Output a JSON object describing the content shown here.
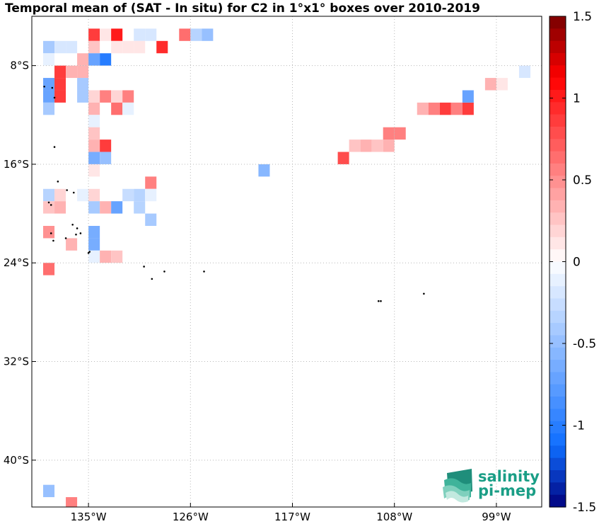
{
  "chart_data": {
    "type": "heatmap",
    "title": "Temporal mean of (SAT - In situ) for C2 in 1°x1° boxes over 2010-2019",
    "xlabel": "",
    "ylabel": "",
    "x_ticks": [
      "135°W",
      "126°W",
      "117°W",
      "108°W",
      "99°W"
    ],
    "y_ticks": [
      "8°S",
      "16°S",
      "24°S",
      "32°S",
      "40°S"
    ],
    "xlim": [
      -140.0,
      -95.0
    ],
    "ylim": [
      -43.8,
      -4.0
    ],
    "grid": true,
    "colorbar": {
      "min": -1.5,
      "max": 1.5,
      "levels": 40,
      "ticks": [
        "1.5",
        "1",
        "0.5",
        "0",
        "-0.5",
        "-1",
        "-1.5"
      ],
      "tick_values": [
        1.5,
        1.0,
        0.5,
        0.0,
        -0.5,
        -1.0,
        -1.5
      ]
    },
    "cells": [
      {
        "lon": -135.0,
        "lat": -5.0,
        "value": 0.9
      },
      {
        "lon": -134.0,
        "lat": -5.0,
        "value": 0.15
      },
      {
        "lon": -133.0,
        "lat": -5.0,
        "value": 1.0
      },
      {
        "lon": -131.0,
        "lat": -5.0,
        "value": -0.2
      },
      {
        "lon": -130.0,
        "lat": -5.0,
        "value": -0.2
      },
      {
        "lon": -127.0,
        "lat": -5.0,
        "value": 0.65
      },
      {
        "lon": -126.0,
        "lat": -5.0,
        "value": -0.3
      },
      {
        "lon": -125.0,
        "lat": -5.0,
        "value": -0.5
      },
      {
        "lon": -139.0,
        "lat": -6.0,
        "value": -0.4
      },
      {
        "lon": -138.0,
        "lat": -6.0,
        "value": -0.2
      },
      {
        "lon": -137.0,
        "lat": -6.0,
        "value": -0.2
      },
      {
        "lon": -135.0,
        "lat": -6.0,
        "value": 0.25
      },
      {
        "lon": -133.0,
        "lat": -6.0,
        "value": 0.15
      },
      {
        "lon": -132.0,
        "lat": -6.0,
        "value": 0.15
      },
      {
        "lon": -131.0,
        "lat": -6.0,
        "value": 0.15
      },
      {
        "lon": -129.0,
        "lat": -6.0,
        "value": 0.95
      },
      {
        "lon": -139.0,
        "lat": -7.0,
        "value": -0.1
      },
      {
        "lon": -136.0,
        "lat": -7.0,
        "value": 0.35
      },
      {
        "lon": -135.0,
        "lat": -7.0,
        "value": -0.7
      },
      {
        "lon": -134.0,
        "lat": -7.0,
        "value": -1.05
      },
      {
        "lon": -138.0,
        "lat": -8.0,
        "value": 0.9
      },
      {
        "lon": -137.0,
        "lat": -8.0,
        "value": 0.35
      },
      {
        "lon": -136.0,
        "lat": -8.0,
        "value": 0.35
      },
      {
        "lon": -139.0,
        "lat": -9.0,
        "value": -0.7
      },
      {
        "lon": -138.0,
        "lat": -9.0,
        "value": 0.9
      },
      {
        "lon": -136.0,
        "lat": -9.0,
        "value": -0.45
      },
      {
        "lon": -139.0,
        "lat": -10.0,
        "value": -0.7
      },
      {
        "lon": -138.0,
        "lat": -10.0,
        "value": 0.9
      },
      {
        "lon": -136.0,
        "lat": -10.0,
        "value": -0.45
      },
      {
        "lon": -135.0,
        "lat": -10.0,
        "value": 0.2
      },
      {
        "lon": -134.0,
        "lat": -10.0,
        "value": 0.55
      },
      {
        "lon": -133.0,
        "lat": -10.0,
        "value": 0.2
      },
      {
        "lon": -132.0,
        "lat": -10.0,
        "value": 0.55
      },
      {
        "lon": -139.0,
        "lat": -11.0,
        "value": -0.4
      },
      {
        "lon": -135.0,
        "lat": -11.0,
        "value": 0.3
      },
      {
        "lon": -133.0,
        "lat": -11.0,
        "value": 0.65
      },
      {
        "lon": -132.0,
        "lat": -11.0,
        "value": -0.15
      },
      {
        "lon": -135.0,
        "lat": -12.0,
        "value": -0.1
      },
      {
        "lon": -135.0,
        "lat": -13.0,
        "value": 0.25
      },
      {
        "lon": -135.0,
        "lat": -14.0,
        "value": 0.35
      },
      {
        "lon": -134.0,
        "lat": -14.0,
        "value": 0.85
      },
      {
        "lon": -135.0,
        "lat": -15.0,
        "value": -0.65
      },
      {
        "lon": -134.0,
        "lat": -15.0,
        "value": -0.5
      },
      {
        "lon": -135.0,
        "lat": -16.0,
        "value": 0.15
      },
      {
        "lon": -130.0,
        "lat": -17.0,
        "value": 0.55
      },
      {
        "lon": -139.0,
        "lat": -18.0,
        "value": -0.3
      },
      {
        "lon": -138.0,
        "lat": -18.0,
        "value": 0.2
      },
      {
        "lon": -136.0,
        "lat": -18.0,
        "value": -0.15
      },
      {
        "lon": -135.0,
        "lat": -18.0,
        "value": 0.2
      },
      {
        "lon": -132.0,
        "lat": -18.0,
        "value": -0.25
      },
      {
        "lon": -131.0,
        "lat": -18.0,
        "value": -0.3
      },
      {
        "lon": -130.0,
        "lat": -18.0,
        "value": -0.15
      },
      {
        "lon": -139.0,
        "lat": -19.0,
        "value": 0.25
      },
      {
        "lon": -138.0,
        "lat": -19.0,
        "value": 0.35
      },
      {
        "lon": -135.0,
        "lat": -19.0,
        "value": -0.45
      },
      {
        "lon": -134.0,
        "lat": -19.0,
        "value": 0.35
      },
      {
        "lon": -133.0,
        "lat": -19.0,
        "value": -0.75
      },
      {
        "lon": -131.0,
        "lat": -19.0,
        "value": -0.35
      },
      {
        "lon": -130.0,
        "lat": -20.0,
        "value": -0.45
      },
      {
        "lon": -139.0,
        "lat": -21.0,
        "value": 0.45
      },
      {
        "lon": -135.0,
        "lat": -21.0,
        "value": -0.65
      },
      {
        "lon": -135.0,
        "lat": -22.0,
        "value": -0.65
      },
      {
        "lon": -137.0,
        "lat": -22.0,
        "value": 0.35
      },
      {
        "lon": -135.0,
        "lat": -23.0,
        "value": -0.15
      },
      {
        "lon": -134.0,
        "lat": -23.0,
        "value": 0.35
      },
      {
        "lon": -133.0,
        "lat": -23.0,
        "value": 0.25
      },
      {
        "lon": -139.0,
        "lat": -24.0,
        "value": 0.65
      },
      {
        "lon": -120.0,
        "lat": -16.0,
        "value": -0.55
      },
      {
        "lon": -113.0,
        "lat": -15.0,
        "value": 0.75
      },
      {
        "lon": -112.0,
        "lat": -14.0,
        "value": 0.25
      },
      {
        "lon": -111.0,
        "lat": -14.0,
        "value": 0.35
      },
      {
        "lon": -110.0,
        "lat": -14.0,
        "value": 0.25
      },
      {
        "lon": -109.0,
        "lat": -14.0,
        "value": 0.3
      },
      {
        "lon": -109.0,
        "lat": -13.0,
        "value": 0.55
      },
      {
        "lon": -108.0,
        "lat": -13.0,
        "value": 0.55
      },
      {
        "lon": -106.0,
        "lat": -11.0,
        "value": 0.35
      },
      {
        "lon": -105.0,
        "lat": -11.0,
        "value": 0.55
      },
      {
        "lon": -104.0,
        "lat": -11.0,
        "value": 0.85
      },
      {
        "lon": -103.0,
        "lat": -11.0,
        "value": 0.55
      },
      {
        "lon": -102.0,
        "lat": -11.0,
        "value": 0.9
      },
      {
        "lon": -102.0,
        "lat": -10.0,
        "value": -0.75
      },
      {
        "lon": -100.0,
        "lat": -9.0,
        "value": 0.35
      },
      {
        "lon": -99.0,
        "lat": -9.0,
        "value": 0.15
      },
      {
        "lon": -97.0,
        "lat": -8.0,
        "value": -0.2
      },
      {
        "lon": -139.0,
        "lat": -42.0,
        "value": -0.5
      },
      {
        "lon": -137.0,
        "lat": -43.0,
        "value": 0.55
      }
    ],
    "islands": [
      {
        "lon": -138.9,
        "lat": -9.7
      },
      {
        "lon": -138.2,
        "lat": -9.8
      },
      {
        "lon": -138.0,
        "lat": -10.6
      },
      {
        "lon": -138.0,
        "lat": -14.6
      },
      {
        "lon": -137.7,
        "lat": -17.4
      },
      {
        "lon": -136.9,
        "lat": -18.1
      },
      {
        "lon": -136.3,
        "lat": -18.3
      },
      {
        "lon": -138.5,
        "lat": -19.1
      },
      {
        "lon": -138.3,
        "lat": -19.3
      },
      {
        "lon": -136.4,
        "lat": -20.9
      },
      {
        "lon": -136.0,
        "lat": -21.2
      },
      {
        "lon": -135.7,
        "lat": -21.6
      },
      {
        "lon": -136.1,
        "lat": -21.7
      },
      {
        "lon": -138.3,
        "lat": -21.6
      },
      {
        "lon": -138.1,
        "lat": -22.2
      },
      {
        "lon": -137.0,
        "lat": -22.0
      },
      {
        "lon": -134.9,
        "lat": -23.1
      },
      {
        "lon": -135.0,
        "lat": -23.2
      },
      {
        "lon": -130.1,
        "lat": -24.3
      },
      {
        "lon": -128.3,
        "lat": -24.7
      },
      {
        "lon": -124.8,
        "lat": -24.7
      },
      {
        "lon": -129.4,
        "lat": -25.3
      },
      {
        "lon": -109.4,
        "lat": -27.1
      },
      {
        "lon": -109.2,
        "lat": -27.1
      },
      {
        "lon": -105.4,
        "lat": -26.5
      }
    ]
  },
  "logo": {
    "line1": "salinity",
    "line2": "pi-mep"
  }
}
